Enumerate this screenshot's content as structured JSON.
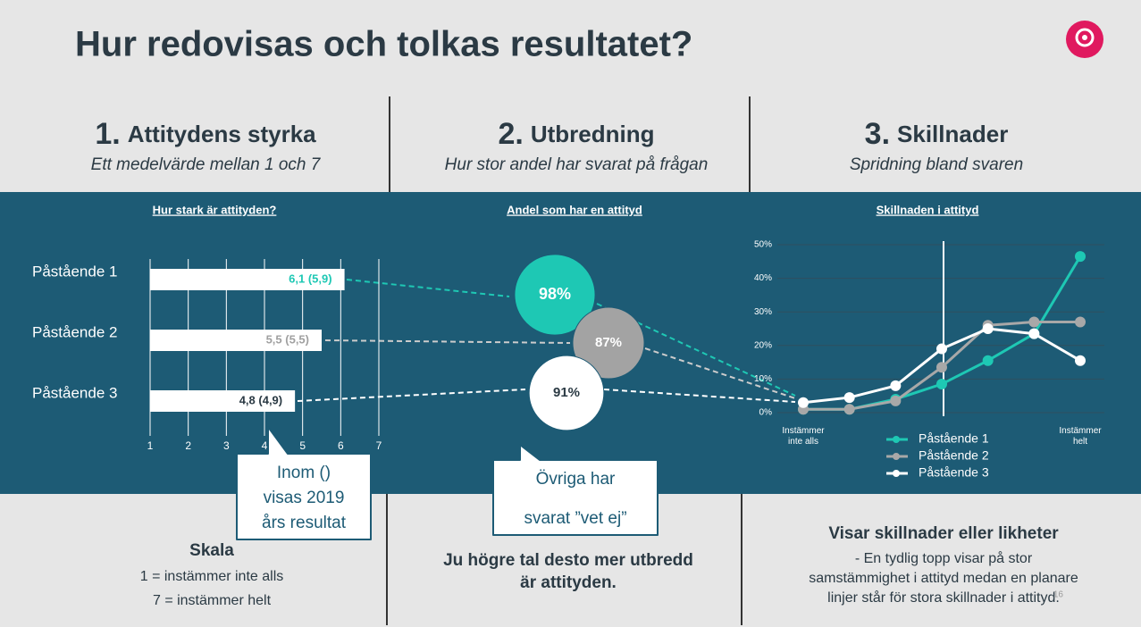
{
  "title": "Hur redovisas och tolkas resultatet?",
  "sections": [
    {
      "number": "1.",
      "heading": "Attitydens styrka",
      "subtitle": "Ett medelvärde mellan 1 och 7"
    },
    {
      "number": "2.",
      "heading": "Utbredning",
      "subtitle": "Hur stor andel har svarat på frågan"
    },
    {
      "number": "3.",
      "heading": "Skillnader",
      "subtitle": "Spridning bland svaren"
    }
  ],
  "chart_data": [
    {
      "type": "bar",
      "title": "Hur stark är attityden?",
      "categories": [
        "Påstående 1",
        "Påstående 2",
        "Påstående 3"
      ],
      "values": [
        6.1,
        5.5,
        4.8
      ],
      "value_labels": [
        "6,1 (5,9)",
        "5,5 (5,5)",
        "4,8 (4,9)"
      ],
      "label_colors": [
        "#1ec8b4",
        "#a0a0a0",
        "#2b3a44"
      ],
      "color": "#ffffff",
      "xlim": [
        1,
        7
      ],
      "xticks": [
        1,
        2,
        3,
        4,
        5,
        6,
        7
      ],
      "grid": true
    },
    {
      "type": "bubble",
      "title": "Andel som har en attityd",
      "categories": [
        "Påstående 1",
        "Påstående 2",
        "Påstående 3"
      ],
      "values": [
        98,
        87,
        91
      ],
      "value_labels": [
        "98%",
        "87%",
        "91%"
      ],
      "colors": [
        "#1ec8b4",
        "#a3a3a3",
        "#ffffff"
      ]
    },
    {
      "type": "line",
      "title": "Skillnaden i attityd",
      "categories": [
        "Instämmer inte alls",
        null,
        null,
        null,
        null,
        null,
        "Instämmer helt"
      ],
      "ylim": [
        0,
        50
      ],
      "yticks": [
        {
          "value": 0,
          "label": "0%"
        },
        {
          "value": 10,
          "label": "10%"
        },
        {
          "value": 20,
          "label": "20%"
        },
        {
          "value": 30,
          "label": "30%"
        },
        {
          "value": 40,
          "label": "40%"
        },
        {
          "value": 50,
          "label": "50%"
        }
      ],
      "grid": true,
      "series": [
        {
          "name": "Påstående 1",
          "color": "#1ec8b4",
          "values": [
            1,
            1,
            4,
            8.5,
            15.5,
            23.5,
            46.5
          ]
        },
        {
          "name": "Påstående 2",
          "color": "#a8a8a8",
          "values": [
            1,
            1,
            3.5,
            13.5,
            26,
            27,
            27
          ]
        },
        {
          "name": "Påstående 3",
          "color": "#ffffff",
          "values": [
            3,
            4.5,
            8,
            19,
            25,
            23.5,
            15.5
          ]
        }
      ]
    }
  ],
  "callouts": [
    [
      "Inom ()",
      "visas 2019",
      "års resultat"
    ],
    [
      "Övriga har",
      "svarat ”vet ej”"
    ]
  ],
  "footer": [
    {
      "heading": "Skala",
      "lines": [
        "1 = instämmer inte alls",
        "7 = instämmer helt"
      ]
    },
    {
      "heading": [
        "Ju högre tal desto mer utbredd",
        "är attityden."
      ]
    },
    {
      "heading": "Visar skillnader eller likheter",
      "lines": [
        "- En tydlig topp visar på stor",
        "samstämmighet i attityd medan en planare",
        "linjer står för stora skillnader i attityd."
      ]
    }
  ],
  "page_number": "16"
}
